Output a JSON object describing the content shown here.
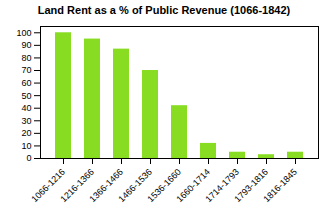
{
  "chart_data": {
    "type": "bar",
    "title": "Land Rent as a % of Public Revenue (1066-1842)",
    "categories": [
      "1066-1216",
      "1216-1366",
      "1366-1466",
      "1466-1536",
      "1536-1660",
      "1660-1714",
      "1714-1793",
      "1793-1816",
      "1816-1845"
    ],
    "values": [
      100,
      95,
      87,
      70,
      42,
      12,
      5,
      3,
      5
    ],
    "color": "#88DD22",
    "ylim": [
      0,
      105
    ],
    "yticks": [
      0,
      10,
      20,
      30,
      40,
      50,
      60,
      70,
      80,
      90,
      100
    ],
    "grid": false
  }
}
